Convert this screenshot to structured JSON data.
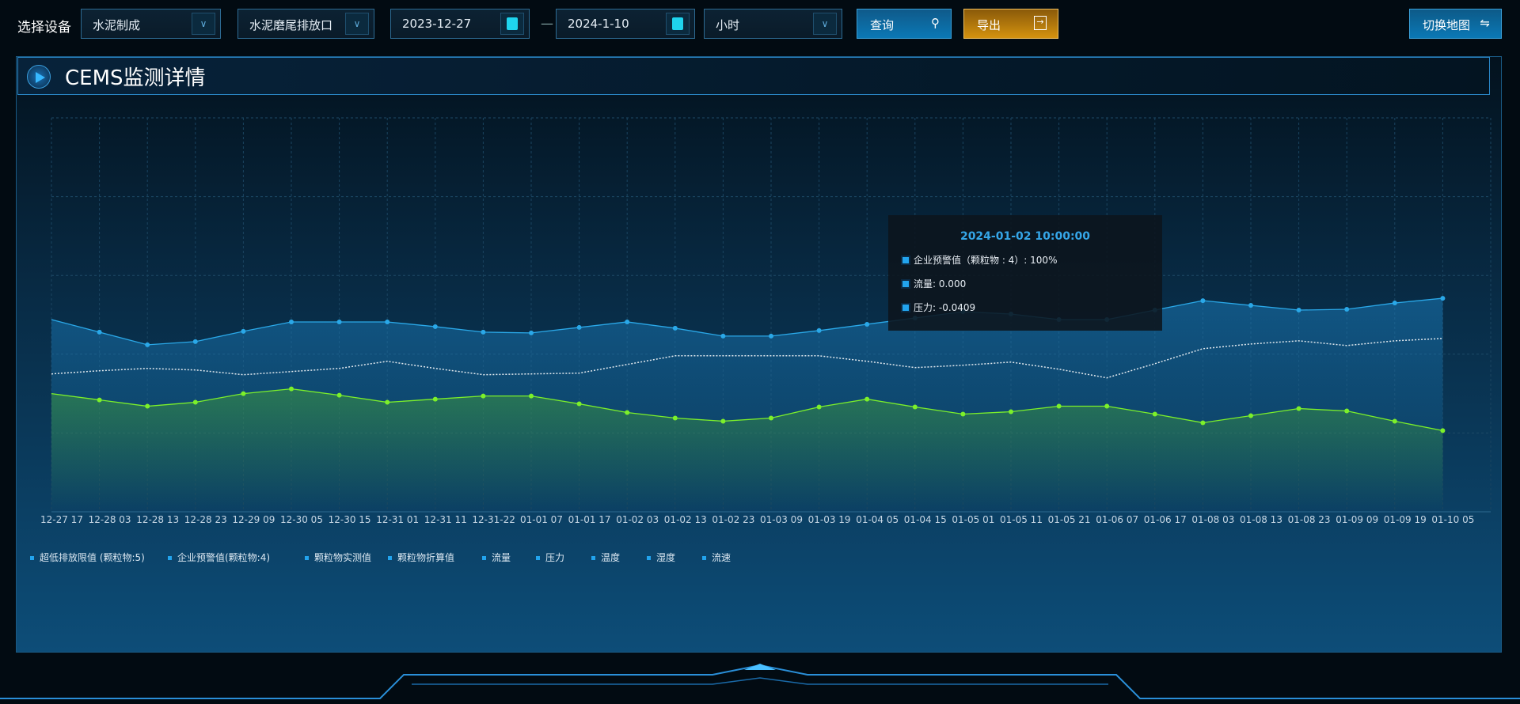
{
  "toolbar": {
    "device_label": "选择设备",
    "select1": "水泥制成",
    "select2": "水泥磨尾排放口",
    "date_start": "2023-12-27",
    "date_sep": "—",
    "date_end": "2024-1-10",
    "granularity": "小时",
    "query": "查询",
    "export": "导出",
    "switch_map": "切换地图",
    "switch_icon": "⇋",
    "query_icon": "search-icon",
    "export_icon": "export-icon"
  },
  "panel": {
    "title": "CEMS监测详情"
  },
  "tooltip": {
    "time": "2024-01-02 10:00:00",
    "rows": [
      "企业预警值（颗粒物 : 4）:     100%",
      "流量: 0.000",
      "压力: -0.0409"
    ]
  },
  "chart_data": {
    "type": "line",
    "x": [
      "12-27 17",
      "12-28 03",
      "12-28 13",
      "12-28 23",
      "12-29 09",
      "12-30 05",
      "12-30 15",
      "12-31 01",
      "12-31 11",
      "12-31-22",
      "01-01 07",
      "01-01 17",
      "01-02 03",
      "01-02 13",
      "01-02 23",
      "01-03 09",
      "01-03 19",
      "01-04 05",
      "01-04 15",
      "01-05 01",
      "01-05 11",
      "01-05 21",
      "01-06 07",
      "01-06 17",
      "01-08 03",
      "01-08 13",
      "01-08 23",
      "01-09 09",
      "01-09 19",
      "01-10 05"
    ],
    "grid": true,
    "y_range": [
      0,
      5
    ],
    "series": [
      {
        "color": "#2aa8e8",
        "area": true,
        "values": [
          2.44,
          2.28,
          2.12,
          2.16,
          2.29,
          2.41,
          2.41,
          2.41,
          2.35,
          2.28,
          2.27,
          2.34,
          2.41,
          2.33,
          2.23,
          2.23,
          2.3,
          2.38,
          2.46,
          2.54,
          2.51,
          2.44,
          2.44,
          2.56,
          2.68,
          2.62,
          2.56,
          2.57,
          2.65,
          2.71
        ]
      },
      {
        "color": "#e0e8ee",
        "dashed": true,
        "values": [
          1.75,
          1.79,
          1.82,
          1.8,
          1.74,
          1.78,
          1.82,
          1.91,
          1.82,
          1.74,
          1.75,
          1.76,
          1.87,
          1.98,
          1.98,
          1.98,
          1.98,
          1.91,
          1.83,
          1.86,
          1.9,
          1.81,
          1.7,
          1.88,
          2.07,
          2.13,
          2.17,
          2.11,
          2.17,
          2.2
        ]
      },
      {
        "color": "#7cf02a",
        "area": true,
        "values": [
          1.5,
          1.42,
          1.34,
          1.39,
          1.5,
          1.56,
          1.48,
          1.39,
          1.43,
          1.47,
          1.47,
          1.37,
          1.26,
          1.19,
          1.15,
          1.19,
          1.33,
          1.43,
          1.33,
          1.24,
          1.27,
          1.34,
          1.34,
          1.24,
          1.13,
          1.22,
          1.31,
          1.28,
          1.15,
          1.03
        ]
      }
    ],
    "legend": [
      "超低排放限值 (颗粒物:5)",
      "企业预警值(颗粒物:4)",
      "颗粒物实测值",
      "颗粒物折算值",
      "流量",
      "压力",
      "温度",
      "湿度",
      "流速"
    ],
    "legend_position": "bottom-left"
  }
}
